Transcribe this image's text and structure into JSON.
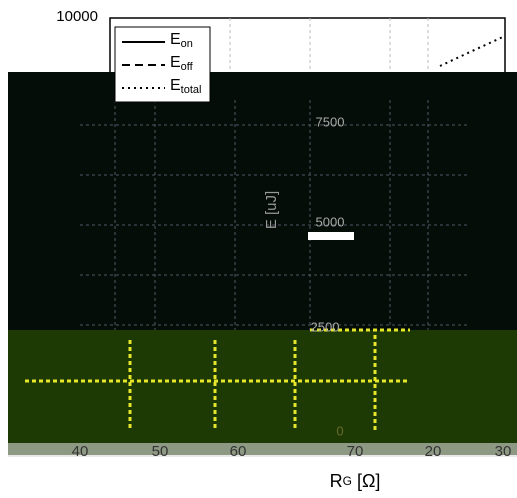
{
  "y_axis": {
    "top_label": "10000",
    "inner_labels": [
      "7500",
      "5000",
      "2500",
      "0"
    ],
    "title": "E [uJ]"
  },
  "x_axis": {
    "tick_labels": [
      "40",
      "50",
      "60",
      "70",
      "20",
      "30"
    ],
    "title_main": "R",
    "title_sub": "G",
    "title_unit": "[Ω]"
  },
  "legend": [
    {
      "main": "E",
      "sub": "on"
    },
    {
      "main": "E",
      "sub": "off"
    },
    {
      "main": "E",
      "sub": "total"
    }
  ]
}
